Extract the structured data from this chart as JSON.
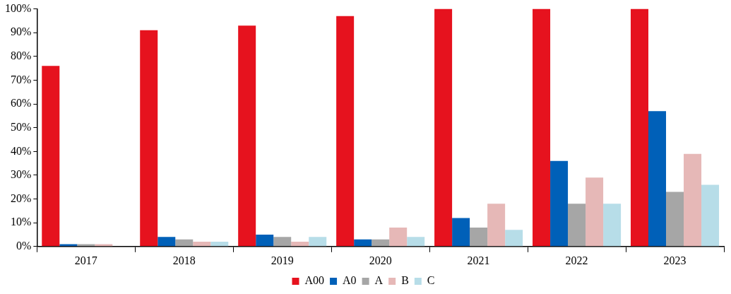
{
  "chart_data": {
    "type": "bar",
    "categories": [
      "2017",
      "2018",
      "2019",
      "2020",
      "2021",
      "2022",
      "2023"
    ],
    "series": [
      {
        "name": "A00",
        "color": "#e6121e",
        "values": [
          76,
          91,
          93,
          97,
          100,
          100,
          100
        ]
      },
      {
        "name": "A0",
        "color": "#0060b8",
        "values": [
          1,
          4,
          5,
          3,
          12,
          36,
          57
        ]
      },
      {
        "name": "A",
        "color": "#a6a6a6",
        "values": [
          1,
          3,
          4,
          3,
          8,
          18,
          23
        ]
      },
      {
        "name": "B",
        "color": "#e6b8b7",
        "values": [
          1,
          2,
          2,
          8,
          18,
          29,
          39
        ]
      },
      {
        "name": "C",
        "color": "#b7dde8",
        "values": [
          0,
          2,
          4,
          4,
          7,
          18,
          26
        ]
      }
    ],
    "ylim": [
      0,
      100
    ],
    "yticks": [
      {
        "value": 0,
        "label": "0%"
      },
      {
        "value": 10,
        "label": "10%"
      },
      {
        "value": 20,
        "label": "20%"
      },
      {
        "value": 30,
        "label": "30%"
      },
      {
        "value": 40,
        "label": "40%"
      },
      {
        "value": 50,
        "label": "50%"
      },
      {
        "value": 60,
        "label": "60%"
      },
      {
        "value": 70,
        "label": "70%"
      },
      {
        "value": 80,
        "label": "80%"
      },
      {
        "value": 90,
        "label": "90%"
      },
      {
        "value": 100,
        "label": "100%"
      }
    ],
    "grid": false,
    "legend": "bottom"
  }
}
